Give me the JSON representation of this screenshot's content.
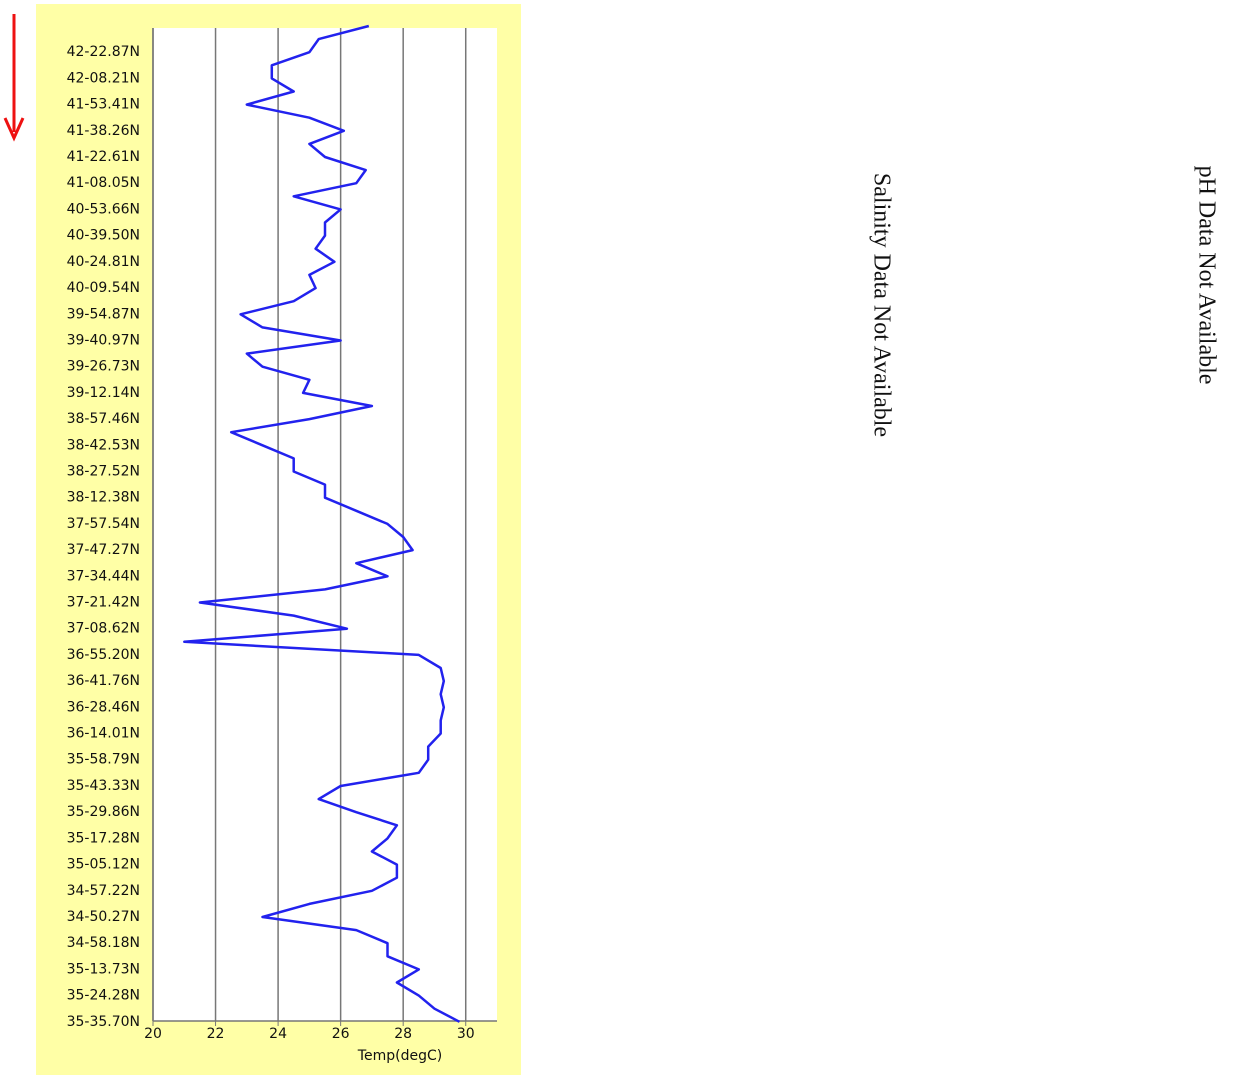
{
  "chart_data": {
    "type": "line",
    "orientation": "horizontal",
    "x_label": "Temp(degC)",
    "categories": [
      null,
      null,
      "42-22.87N",
      null,
      "42-08.21N",
      null,
      "41-53.41N",
      null,
      "41-38.26N",
      null,
      "41-22.61N",
      null,
      "41-08.05N",
      null,
      "40-53.66N",
      null,
      "40-39.50N",
      null,
      "40-24.81N",
      null,
      "40-09.54N",
      null,
      "39-54.87N",
      null,
      "39-40.97N",
      null,
      "39-26.73N",
      null,
      "39-12.14N",
      null,
      "38-57.46N",
      null,
      "38-42.53N",
      null,
      "38-27.52N",
      null,
      "38-12.38N",
      null,
      "37-57.54N",
      null,
      "37-47.27N",
      null,
      "37-34.44N",
      null,
      "37-21.42N",
      null,
      "37-08.62N",
      null,
      "36-55.20N",
      null,
      "36-41.76N",
      null,
      "36-28.46N",
      null,
      "36-14.01N",
      null,
      "35-58.79N",
      null,
      "35-43.33N",
      null,
      "35-29.86N",
      null,
      "35-17.28N",
      null,
      "35-05.12N",
      null,
      "34-57.22N",
      null,
      "34-50.27N",
      null,
      "34-58.18N",
      null,
      "35-13.73N",
      null,
      "35-24.28N",
      null,
      "35-35.70N"
    ],
    "values": [
      26.9,
      25.3,
      25.0,
      23.8,
      23.8,
      24.5,
      23.0,
      25.0,
      26.1,
      25.0,
      25.5,
      26.8,
      26.5,
      24.5,
      26.0,
      25.5,
      25.5,
      25.2,
      25.8,
      25.0,
      25.2,
      24.5,
      22.8,
      23.5,
      26.0,
      23.0,
      23.5,
      25.0,
      24.8,
      27.0,
      25.0,
      22.5,
      23.5,
      24.5,
      24.5,
      25.5,
      25.5,
      26.5,
      27.5,
      28.0,
      28.3,
      26.5,
      27.5,
      25.5,
      21.5,
      24.5,
      26.2,
      21.0,
      28.5,
      29.2,
      29.3,
      29.2,
      29.3,
      29.2,
      29.2,
      28.8,
      28.8,
      28.5,
      26.0,
      25.3,
      26.5,
      27.8,
      27.5,
      27.0,
      27.8,
      27.8,
      27.0,
      25.0,
      23.5,
      26.5,
      27.5,
      27.5,
      28.5,
      27.8,
      28.5,
      29.0,
      29.8
    ],
    "color": "#2222ee",
    "xlim": [
      20,
      31
    ],
    "xticks": [
      20,
      22,
      24,
      26,
      28,
      30
    ],
    "grid": true
  },
  "side_panels": [
    "Salinity Data Not Available",
    "pH Data Not Available"
  ]
}
